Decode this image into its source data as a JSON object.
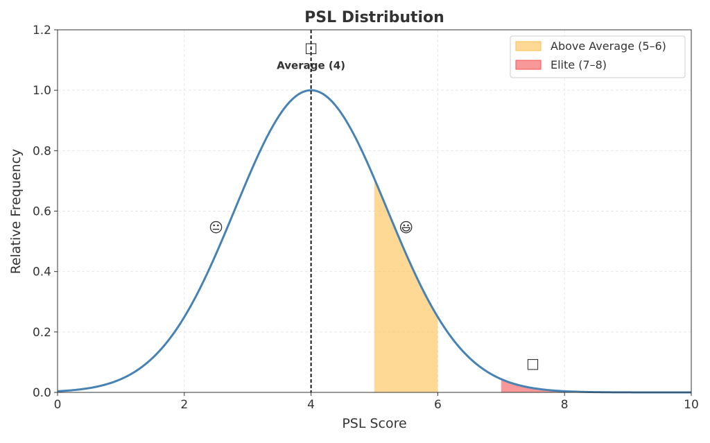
{
  "chart_data": {
    "type": "line",
    "title": "PSL Distribution",
    "xlabel": "PSL Score",
    "ylabel": "Relative Frequency",
    "xlim": [
      0,
      10
    ],
    "ylim": [
      0,
      1.2
    ],
    "xticks": [
      "0",
      "2",
      "4",
      "6",
      "8",
      "10"
    ],
    "yticks": [
      "0.0",
      "0.2",
      "0.4",
      "0.6",
      "0.8",
      "1.0",
      "1.2"
    ],
    "grid": true,
    "legend_position": "top-right",
    "curve": {
      "function": "gaussian",
      "mean": 4,
      "std": 1.2,
      "peak": 1.0,
      "color": "#4682b4"
    },
    "mean_line": {
      "x": 4,
      "style": "dashed",
      "color": "#000000"
    },
    "shaded_regions": [
      {
        "name": "Above Average (5–6)",
        "x_range": [
          5,
          6
        ],
        "color": "#fbc04f",
        "opacity": 0.6
      },
      {
        "name": "Elite (7–8)",
        "x_range": [
          7,
          8
        ],
        "color": "#f55454",
        "opacity": 0.6
      }
    ],
    "annotations": [
      {
        "text": "Average (4)",
        "x": 4,
        "y": 1.07,
        "bold": true
      },
      {
        "text": "□",
        "x": 4,
        "y": 1.07
      },
      {
        "text": "😐",
        "x": 2.5,
        "y": 0.53
      },
      {
        "text": "😃",
        "x": 5.5,
        "y": 0.53
      },
      {
        "text": "□",
        "x": 7.5,
        "y": 0.08
      }
    ]
  }
}
